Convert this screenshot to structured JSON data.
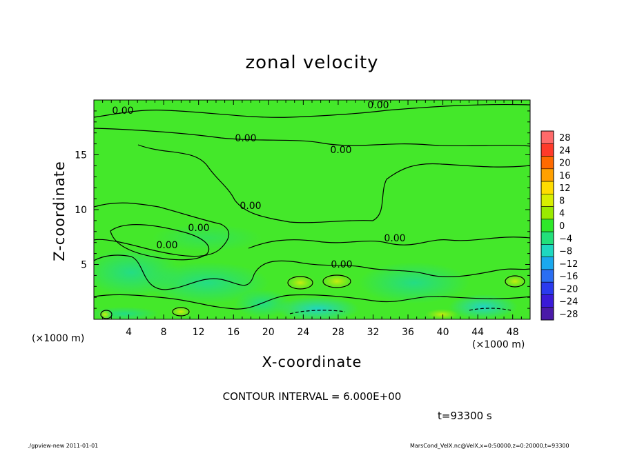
{
  "chart_data": {
    "type": "heatmap",
    "title": "zonal velocity",
    "xlabel": "X-coordinate",
    "ylabel": "Z-coordinate",
    "x_unit_label": "(×1000 m)",
    "xlim": [
      0,
      50
    ],
    "ylim": [
      0,
      20
    ],
    "x_ticks": [
      4,
      8,
      12,
      16,
      20,
      24,
      28,
      32,
      36,
      40,
      44,
      48
    ],
    "y_ticks": [
      5,
      10,
      15
    ],
    "colorbar_levels": [
      28,
      24,
      20,
      16,
      12,
      8,
      4,
      0,
      -4,
      -8,
      -12,
      -16,
      -20,
      -24,
      -28
    ],
    "colorbar_colors": [
      "#ff6a6a",
      "#ff3a2a",
      "#ff6a00",
      "#ffa000",
      "#ffdc00",
      "#d8ee00",
      "#9aea00",
      "#2ee82a",
      "#22e07a",
      "#1ed8c0",
      "#1aa8ee",
      "#2a6ef2",
      "#2a3aee",
      "#3a1ad8",
      "#4a1aa8"
    ],
    "contour_interval": "CONTOUR INTERVAL = 6.000E+00",
    "contour_labels": [
      "0.00",
      "0.00",
      "0.00",
      "0.00",
      "0.00",
      "0.00",
      "0.00",
      "0.00",
      "0.00"
    ],
    "time_label": "t=93300 s",
    "base_color": "#44e82a"
  },
  "footer": {
    "left": "./gpview-new   2011-01-01",
    "right": "MarsCond_VelX.nc@VelX,x=0:50000,z=0:20000,t=93300"
  }
}
